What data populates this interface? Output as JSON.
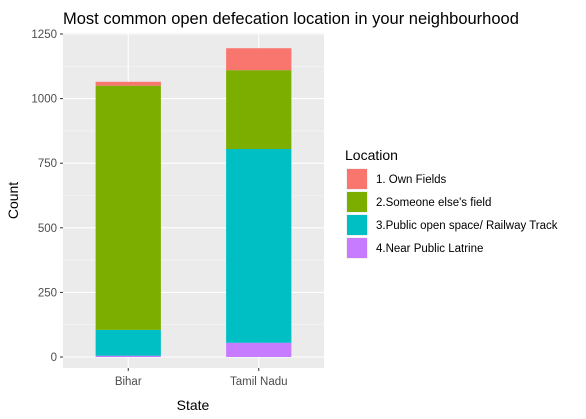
{
  "chart_data": {
    "type": "bar",
    "stacked": true,
    "title": "Most common open defecation location in your neighbourhood",
    "xlabel": "State",
    "ylabel": "Count",
    "categories": [
      "Bihar",
      "Tamil Nadu"
    ],
    "ylim": [
      0,
      1250
    ],
    "yticks": [
      0,
      250,
      500,
      750,
      1000,
      1250
    ],
    "grid": true,
    "legend_title": "Location",
    "legend_position": "right",
    "series": [
      {
        "name": "1. Own Fields",
        "color": "#F8766D",
        "values": [
          15,
          85
        ]
      },
      {
        "name": "2.Someone else's field",
        "color": "#7CAE00",
        "values": [
          945,
          305
        ]
      },
      {
        "name": "3.Public open space/ Railway Track",
        "color": "#00BFC4",
        "values": [
          100,
          750
        ]
      },
      {
        "name": "4.Near Public Latrine",
        "color": "#C77CFF",
        "values": [
          5,
          55
        ]
      }
    ]
  }
}
